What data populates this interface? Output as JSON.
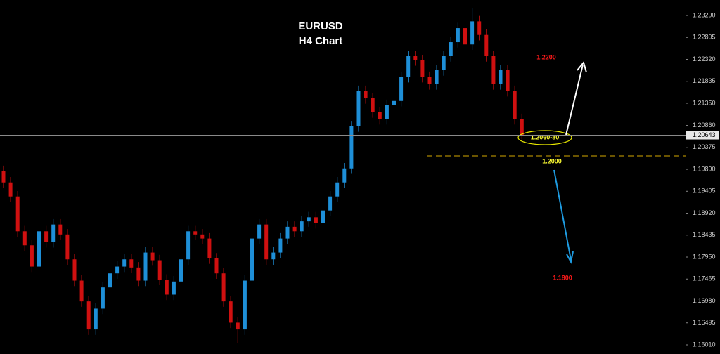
{
  "chart_data": {
    "type": "candlestick",
    "title": "EURUSD",
    "subtitle": "H4 Chart",
    "up_color": "#1e8fd8",
    "down_color": "#d01010",
    "open": [
      1.1985,
      1.196,
      1.1929,
      1.1852,
      1.1821,
      1.1774,
      1.1852,
      1.1828,
      1.1867,
      1.1845,
      1.179,
      1.1743,
      1.1697,
      1.1635,
      1.1681,
      1.1728,
      1.1759,
      1.1774,
      1.179,
      1.1772,
      1.1743,
      1.1805,
      1.1788,
      1.1745,
      1.1712,
      1.1741,
      1.179,
      1.1852,
      1.1845,
      1.1836,
      1.1792,
      1.1759,
      1.1697,
      1.165,
      1.1635,
      1.1743,
      1.1836,
      1.1867,
      1.179,
      1.1805,
      1.1836,
      1.1862,
      1.1852,
      1.1874,
      1.1883,
      1.187,
      1.1898,
      1.1929,
      1.196,
      1.1991,
      1.2084,
      1.2162,
      1.2146,
      1.2115,
      1.21,
      1.2131,
      1.214,
      1.2193,
      1.2239,
      1.223,
      1.2193,
      1.2177,
      1.2208,
      1.2239,
      1.227,
      1.2301,
      1.2265,
      1.2316,
      1.2286,
      1.2239,
      1.2177,
      1.2208,
      1.2162,
      1.21
    ],
    "high": [
      1.1997,
      1.1972,
      1.1941,
      1.1864,
      1.1833,
      1.1864,
      1.1864,
      1.1879,
      1.1879,
      1.1857,
      1.1802,
      1.1755,
      1.1709,
      1.1693,
      1.174,
      1.1771,
      1.1786,
      1.1802,
      1.1802,
      1.1784,
      1.1817,
      1.1817,
      1.18,
      1.1757,
      1.1753,
      1.1802,
      1.1864,
      1.1864,
      1.1857,
      1.1848,
      1.1804,
      1.1771,
      1.1709,
      1.1662,
      1.1755,
      1.1848,
      1.1879,
      1.1879,
      1.1817,
      1.1848,
      1.1874,
      1.1874,
      1.1886,
      1.1895,
      1.1895,
      1.191,
      1.1941,
      1.1972,
      1.2003,
      1.2096,
      1.2174,
      1.2174,
      1.2158,
      1.2127,
      1.2143,
      1.2152,
      1.2205,
      1.2251,
      1.2251,
      1.2242,
      1.2205,
      1.222,
      1.2251,
      1.2282,
      1.2313,
      1.2313,
      1.2345,
      1.2328,
      1.2298,
      1.2251,
      1.222,
      1.222,
      1.2174,
      1.2112
    ],
    "low": [
      1.1948,
      1.1917,
      1.184,
      1.1809,
      1.1762,
      1.1762,
      1.1816,
      1.1816,
      1.1833,
      1.1778,
      1.1731,
      1.1685,
      1.1623,
      1.1623,
      1.1669,
      1.1716,
      1.1747,
      1.1762,
      1.176,
      1.1731,
      1.1731,
      1.1776,
      1.1733,
      1.17,
      1.17,
      1.1729,
      1.1778,
      1.1833,
      1.1824,
      1.178,
      1.1747,
      1.1685,
      1.1638,
      1.1605,
      1.1623,
      1.1731,
      1.1824,
      1.1778,
      1.1778,
      1.1793,
      1.1824,
      1.184,
      1.184,
      1.1862,
      1.1858,
      1.1858,
      1.1886,
      1.1917,
      1.1948,
      1.1979,
      1.2072,
      1.2134,
      1.2103,
      1.2088,
      1.2088,
      1.2119,
      1.2128,
      1.2181,
      1.2218,
      1.2181,
      1.2165,
      1.2165,
      1.2196,
      1.2227,
      1.2258,
      1.2253,
      1.2253,
      1.2274,
      1.2227,
      1.2165,
      1.2165,
      1.215,
      1.2088,
      1.2055
    ],
    "close": [
      1.196,
      1.1929,
      1.1852,
      1.1821,
      1.1774,
      1.1852,
      1.1828,
      1.1867,
      1.1845,
      1.179,
      1.1743,
      1.1697,
      1.1635,
      1.1681,
      1.1728,
      1.1759,
      1.1774,
      1.179,
      1.1772,
      1.1743,
      1.1805,
      1.1788,
      1.1745,
      1.1712,
      1.1741,
      1.179,
      1.1852,
      1.1845,
      1.1836,
      1.1792,
      1.1759,
      1.1697,
      1.165,
      1.1635,
      1.1743,
      1.1836,
      1.1867,
      1.179,
      1.1805,
      1.1836,
      1.1862,
      1.1852,
      1.1874,
      1.1883,
      1.187,
      1.1898,
      1.1929,
      1.196,
      1.1991,
      1.2084,
      1.2162,
      1.2146,
      1.2115,
      1.21,
      1.2131,
      1.214,
      1.2193,
      1.2239,
      1.223,
      1.2193,
      1.2177,
      1.2208,
      1.2239,
      1.227,
      1.2301,
      1.2265,
      1.2316,
      1.2286,
      1.2239,
      1.2177,
      1.2208,
      1.2162,
      1.21,
      1.2064
    ],
    "ylim": [
      1.15808,
      1.23632
    ],
    "yticks": [
      {
        "value": 1.2329,
        "label": "1.23290"
      },
      1.22805,
      {
        "value": 1.2232,
        "label": "1.22320"
      },
      1.21835,
      {
        "value": 1.2135,
        "label": "1.21350"
      },
      {
        "value": 1.2086,
        "label": "1.20860"
      },
      1.20375,
      {
        "value": 1.1989,
        "label": "1.19890"
      },
      1.19405,
      {
        "value": 1.1892,
        "label": "1.18920"
      },
      1.18435,
      {
        "value": 1.1795,
        "label": "1.17950"
      },
      1.17465,
      {
        "value": 1.1698,
        "label": "1.16980"
      },
      1.16495,
      {
        "value": 1.1601,
        "label": "1.16010"
      }
    ],
    "current_price": 1.20643,
    "annotations": [
      "1.2200",
      "1.2060-80",
      "1.2000",
      "1.1800"
    ]
  }
}
